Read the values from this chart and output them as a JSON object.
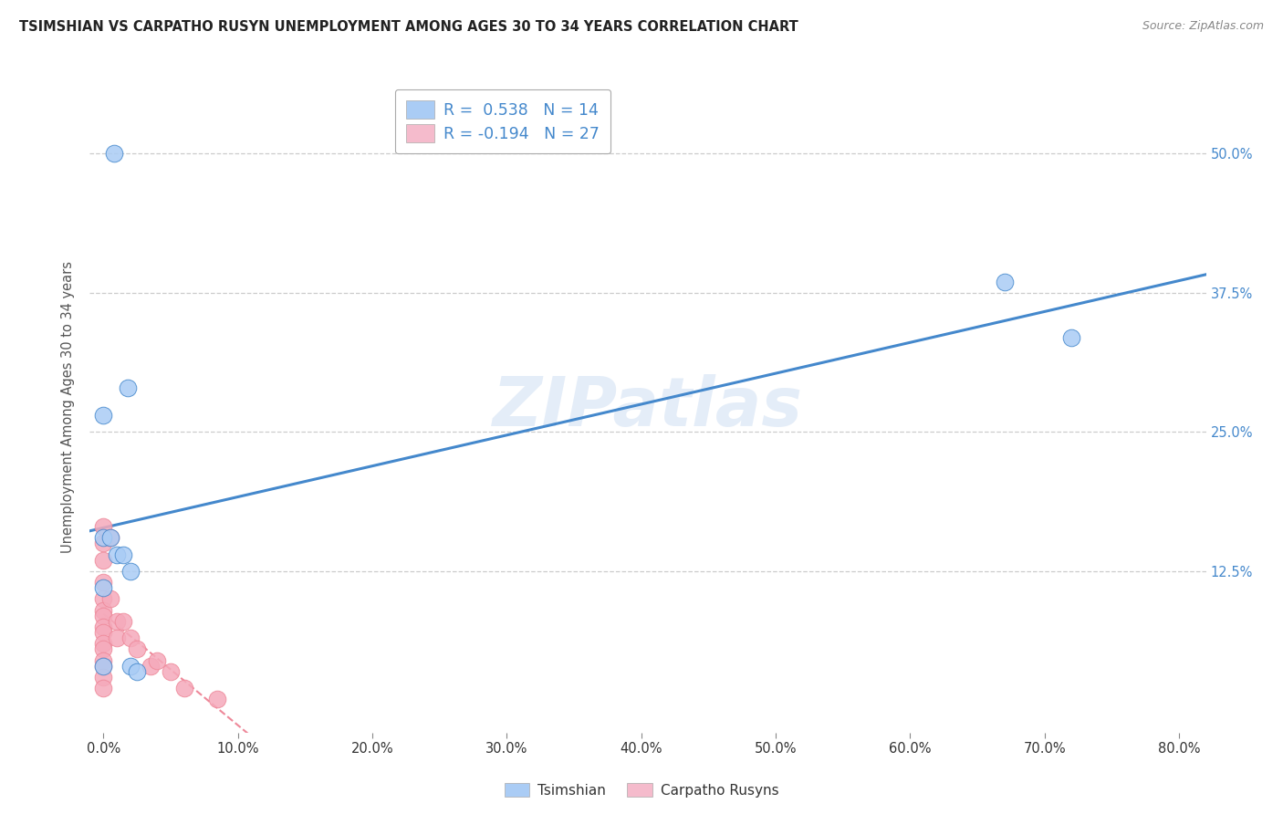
{
  "title": "TSIMSHIAN VS CARPATHO RUSYN UNEMPLOYMENT AMONG AGES 30 TO 34 YEARS CORRELATION CHART",
  "source": "Source: ZipAtlas.com",
  "ylabel": "Unemployment Among Ages 30 to 34 years",
  "watermark": "ZIPatlas",
  "tsimshian_x": [
    0.008,
    0.018,
    0.0,
    0.0,
    0.005,
    0.01,
    0.015,
    0.02,
    0.0,
    0.67,
    0.72,
    0.0,
    0.02,
    0.025
  ],
  "tsimshian_y": [
    0.5,
    0.29,
    0.265,
    0.155,
    0.155,
    0.14,
    0.14,
    0.125,
    0.11,
    0.385,
    0.335,
    0.04,
    0.04,
    0.035
  ],
  "carpatho_x": [
    0.0,
    0.0,
    0.0,
    0.0,
    0.0,
    0.0,
    0.0,
    0.0,
    0.0,
    0.0,
    0.0,
    0.0,
    0.0,
    0.0,
    0.0,
    0.005,
    0.005,
    0.01,
    0.01,
    0.015,
    0.02,
    0.025,
    0.035,
    0.04,
    0.05,
    0.06,
    0.085
  ],
  "carpatho_y": [
    0.165,
    0.15,
    0.135,
    0.115,
    0.1,
    0.09,
    0.085,
    0.075,
    0.07,
    0.06,
    0.055,
    0.045,
    0.04,
    0.03,
    0.02,
    0.155,
    0.1,
    0.08,
    0.065,
    0.08,
    0.065,
    0.055,
    0.04,
    0.045,
    0.035,
    0.02,
    0.01
  ],
  "r_tsimshian": "0.538",
  "n_tsimshian": "14",
  "r_carpatho": "-0.194",
  "n_carpatho": "27",
  "tsimshian_color": "#aaccf5",
  "carpatho_color": "#f5aabb",
  "trend_tsimshian_color": "#4488cc",
  "trend_carpatho_color": "#ee8899",
  "legend_tsimshian_color": "#aaccf5",
  "legend_carpatho_color": "#f5bbcc",
  "axis_label_color": "#4488cc",
  "ytick_color": "#4488cc",
  "background_color": "#ffffff",
  "grid_color": "#cccccc",
  "title_color": "#222222",
  "source_color": "#888888",
  "xticklabels": [
    "0.0%",
    "10.0%",
    "20.0%",
    "30.0%",
    "40.0%",
    "50.0%",
    "60.0%",
    "70.0%",
    "80.0%"
  ],
  "xtick_vals": [
    0.0,
    0.1,
    0.2,
    0.3,
    0.4,
    0.5,
    0.6,
    0.7,
    0.8
  ],
  "yticklabels": [
    "12.5%",
    "25.0%",
    "37.5%",
    "50.0%"
  ],
  "ytick_vals": [
    0.125,
    0.25,
    0.375,
    0.5
  ],
  "xlim": [
    -0.01,
    0.82
  ],
  "ylim": [
    -0.02,
    0.565
  ]
}
